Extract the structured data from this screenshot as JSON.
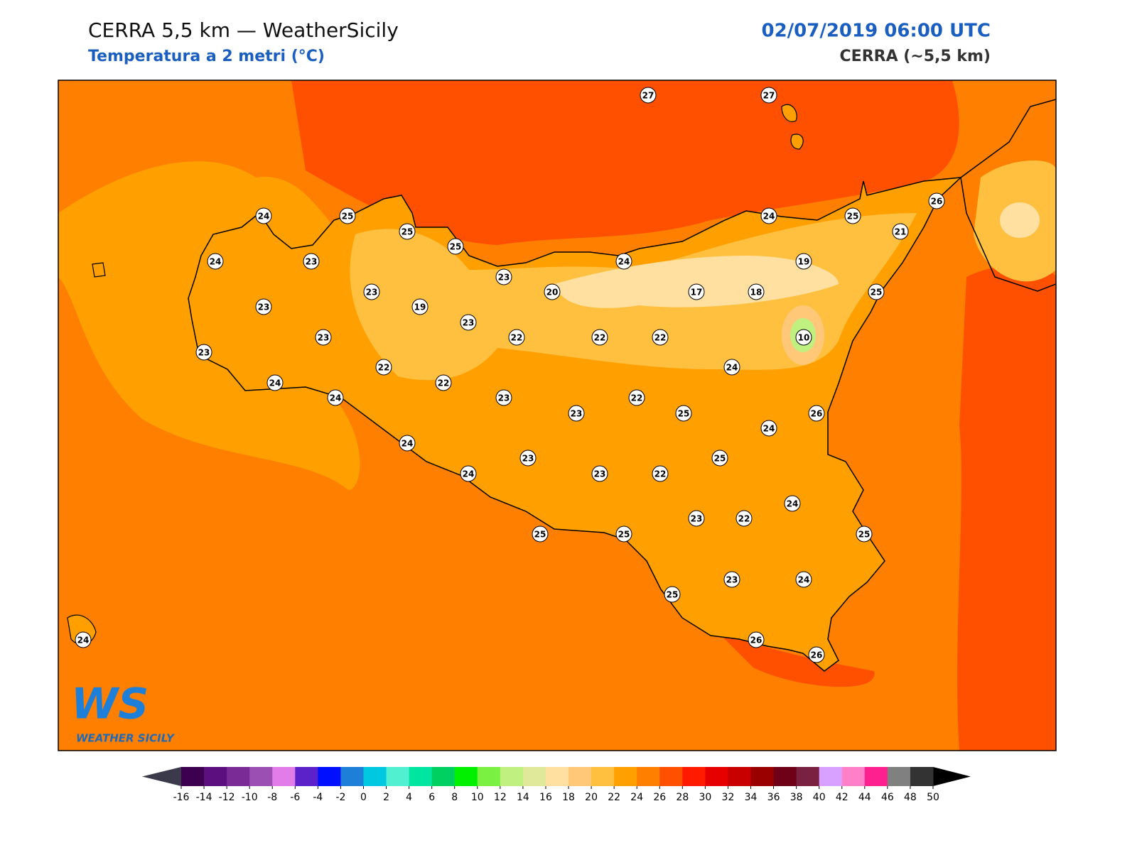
{
  "header": {
    "title": "CERRA 5,5 km — WeatherSicily",
    "subtitle": "Temperatura a 2 metri (°C)",
    "date": "02/07/2019 06:00 UTC",
    "model": "CERRA (~5,5 km)"
  },
  "logo": {
    "mark": "WS",
    "text": "WEATHER SICILY"
  },
  "stations": {
    "values": [
      27,
      27,
      24,
      25,
      25,
      25,
      24,
      23,
      23,
      24,
      24,
      25,
      26,
      21,
      23,
      20,
      17,
      18,
      19,
      25,
      23,
      19,
      23,
      23,
      22,
      22,
      22,
      10,
      23,
      22,
      22,
      24,
      24,
      24,
      23,
      22,
      23,
      25,
      26,
      24,
      24,
      23,
      25,
      24,
      23,
      22,
      24,
      23,
      22,
      25,
      25,
      25,
      23,
      24,
      25,
      26,
      26,
      24
    ]
  },
  "colorbar": {
    "ticks": [
      -16,
      -14,
      -12,
      -10,
      -8,
      -6,
      -4,
      -2,
      0,
      2,
      4,
      6,
      8,
      10,
      12,
      14,
      16,
      18,
      20,
      22,
      24,
      26,
      28,
      30,
      32,
      34,
      36,
      38,
      40,
      42,
      44,
      46,
      48,
      50
    ],
    "colors": [
      "#3d0050",
      "#5c1080",
      "#7a2b96",
      "#9b4fb2",
      "#e27ce8",
      "#5a22c8",
      "#0010ff",
      "#1e7fd8",
      "#00c8e0",
      "#50f0d0",
      "#00e6a0",
      "#00d060",
      "#00f000",
      "#7af040",
      "#c0f080",
      "#e0e89a",
      "#ffe0a0",
      "#ffc878",
      "#ffc040",
      "#ff9f00",
      "#ff7f00",
      "#ff5000",
      "#ff1a00",
      "#e60000",
      "#c80000",
      "#9a0000",
      "#6e0018",
      "#7a2040",
      "#d8a0ff",
      "#ff80c8",
      "#ff2090",
      "#808080",
      "#333333"
    ],
    "under_color": "#3a3a4a",
    "over_color": "#000000"
  }
}
